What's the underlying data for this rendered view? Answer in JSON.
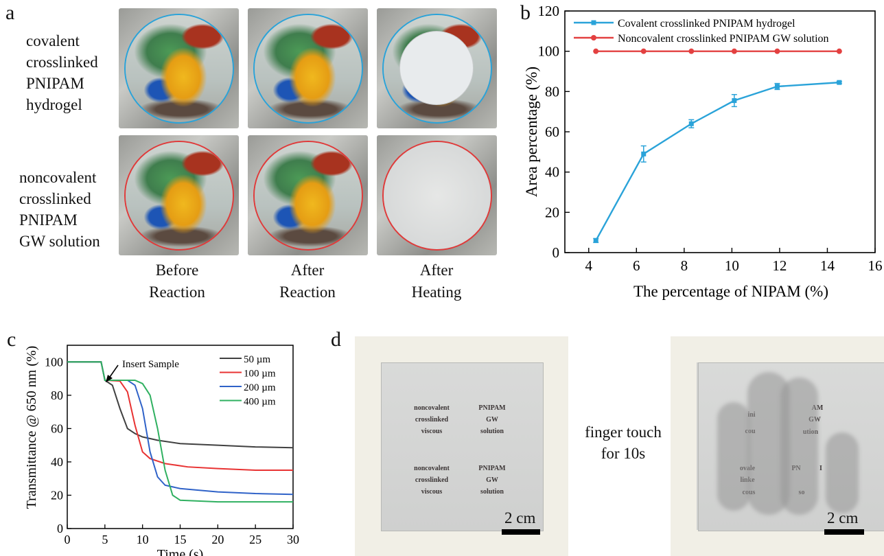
{
  "panel_a": {
    "letter": "a",
    "row1_label": [
      "covalent",
      "crosslinked",
      "PNIPAM",
      "hydrogel"
    ],
    "row2_label": [
      "noncovalent",
      "crosslinked",
      "PNIPAM",
      "GW solution"
    ],
    "col_labels": [
      [
        "Before",
        "Reaction"
      ],
      [
        "After",
        "Reaction"
      ],
      [
        "After",
        "Heating"
      ]
    ],
    "colors": {
      "covalent_ring": "#2aa3d9",
      "noncovalent_ring": "#e03a3a"
    }
  },
  "panel_b": {
    "letter": "b",
    "chart_data": {
      "type": "line",
      "xlabel": "The percentage of NIPAM (%)",
      "ylabel": "Area percentage (%)",
      "xlim": [
        3,
        16
      ],
      "ylim": [
        0,
        120
      ],
      "xticks": [
        4,
        6,
        8,
        10,
        12,
        14,
        16
      ],
      "yticks": [
        0,
        20,
        40,
        60,
        80,
        100,
        120
      ],
      "legend_position": "top",
      "series": [
        {
          "name": "Covalent crosslinked PNIPAM hydrogel",
          "color": "#2aa3d9",
          "marker": "square",
          "x": [
            4.3,
            6.3,
            8.3,
            10.1,
            11.9,
            14.5
          ],
          "y": [
            6,
            49,
            64,
            75.5,
            82.5,
            84.5
          ],
          "err": [
            1,
            4,
            2,
            3,
            1.5,
            0.5
          ]
        },
        {
          "name": "Noncovalent crosslinked  PNIPAM GW solution",
          "color": "#e34040",
          "marker": "circle",
          "x": [
            4.3,
            6.3,
            8.3,
            10.1,
            11.9,
            14.5
          ],
          "y": [
            100,
            100,
            100,
            100,
            100,
            100
          ]
        }
      ]
    }
  },
  "panel_c": {
    "letter": "c",
    "annotation": "Insert Sample",
    "chart_data": {
      "type": "line",
      "xlabel": "Time (s)",
      "ylabel": "Transmittance @ 650 nm (%)",
      "xlim": [
        0,
        30
      ],
      "ylim": [
        0,
        110
      ],
      "xticks": [
        0,
        5,
        10,
        15,
        20,
        25,
        30
      ],
      "yticks": [
        0,
        20,
        40,
        60,
        80,
        100
      ],
      "legend_position": "top-right",
      "series": [
        {
          "name": "50 µm",
          "color": "#404040",
          "x": [
            0,
            4.5,
            5,
            6,
            7,
            8,
            9,
            10,
            12,
            15,
            20,
            25,
            30
          ],
          "y": [
            100,
            100,
            89,
            86,
            72,
            60,
            57,
            55,
            53,
            51,
            50,
            49,
            48.5
          ]
        },
        {
          "name": "100 µm",
          "color": "#e83232",
          "x": [
            0,
            4.5,
            5,
            7,
            8,
            9,
            10,
            11,
            13,
            16,
            20,
            25,
            30
          ],
          "y": [
            100,
            100,
            89,
            88.5,
            82,
            62,
            46,
            42,
            39,
            37,
            36,
            35,
            35
          ]
        },
        {
          "name": "200 µm",
          "color": "#2f62c8",
          "x": [
            0,
            4.5,
            5,
            8,
            9,
            10,
            11,
            12,
            13,
            15,
            20,
            25,
            30
          ],
          "y": [
            100,
            100,
            89,
            89,
            86,
            72,
            46,
            31,
            26,
            24,
            22,
            21,
            20.5
          ]
        },
        {
          "name": "400 µm",
          "color": "#2fb060",
          "x": [
            0,
            4.5,
            5,
            9,
            10,
            11,
            12,
            13,
            14,
            15,
            20,
            25,
            30
          ],
          "y": [
            100,
            100,
            89,
            89,
            87,
            80,
            60,
            35,
            20,
            17,
            16,
            16,
            16
          ]
        }
      ]
    }
  },
  "panel_d": {
    "letter": "d",
    "middle_text": [
      "finger touch",
      "for 10s"
    ],
    "left_text_block1": [
      "noncovalent",
      "crosslinked",
      "viscous"
    ],
    "right_text_block1": [
      "PNIPAM",
      "GW",
      "solution"
    ],
    "left_text_block2": [
      "noncovalent",
      "crosslinked",
      "viscous"
    ],
    "right_text_block2": [
      "PNIPAM",
      "GW",
      "solution"
    ],
    "touched_fragments": [
      "ini",
      "cou",
      "AM",
      "GW",
      "ution",
      "ovale",
      "linke",
      "cous",
      "PN",
      "I",
      "so"
    ],
    "scale_label": "2 cm"
  }
}
